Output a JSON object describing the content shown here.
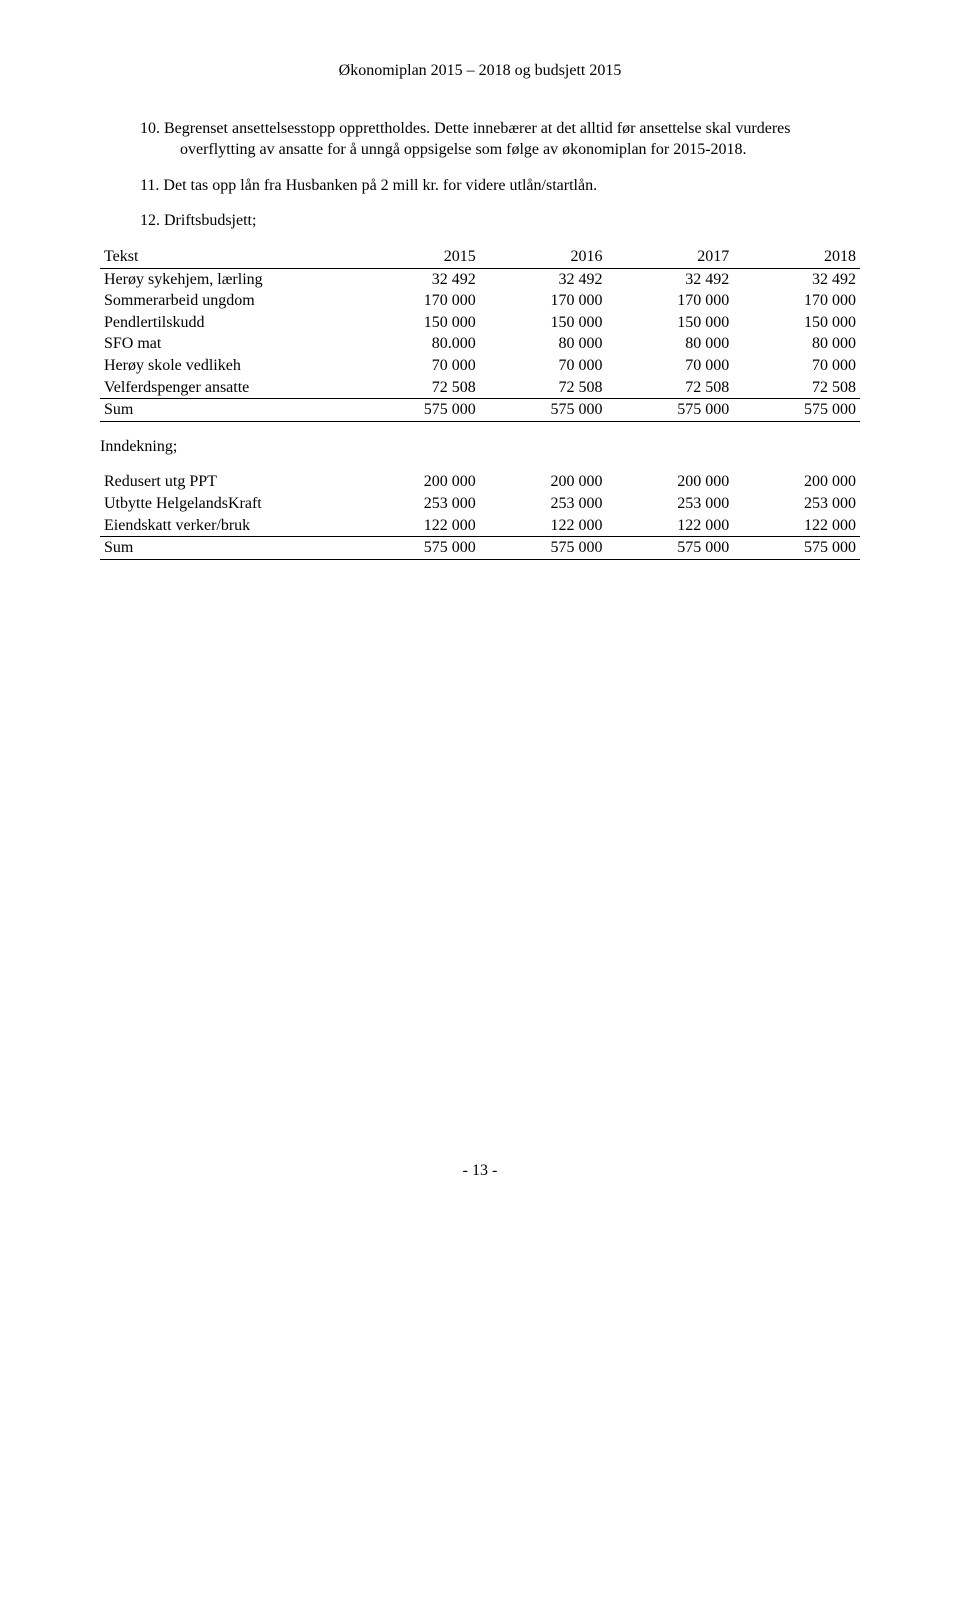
{
  "header": "Økonomiplan 2015 – 2018 og budsjett 2015",
  "items": {
    "p10": "10.   Begrenset ansettelsesstopp opprettholdes. Dette innebærer at det alltid før ansettelse skal vurderes overflytting av ansatte for å unngå oppsigelse som følge av økonomiplan for 2015-2018.",
    "p11": "11.   Det tas opp lån fra Husbanken på 2 mill kr. for videre utlån/startlån.",
    "p12": "12.   Driftsbudsjett;"
  },
  "table1": {
    "header": {
      "c0": "Tekst",
      "c1": "2015",
      "c2": "2016",
      "c3": "2017",
      "c4": "2018"
    },
    "rows": [
      {
        "c0": "Herøy sykehjem, lærling",
        "c1": "32 492",
        "c2": "32 492",
        "c3": "32 492",
        "c4": "32 492"
      },
      {
        "c0": "Sommerarbeid ungdom",
        "c1": "170 000",
        "c2": "170 000",
        "c3": "170 000",
        "c4": "170 000"
      },
      {
        "c0": "Pendlertilskudd",
        "c1": "150 000",
        "c2": "150 000",
        "c3": "150 000",
        "c4": "150 000"
      },
      {
        "c0": "SFO mat",
        "c1": "80.000",
        "c2": "80 000",
        "c3": "80 000",
        "c4": "80 000"
      },
      {
        "c0": "Herøy skole vedlikeh",
        "c1": "70 000",
        "c2": "70 000",
        "c3": "70 000",
        "c4": "70 000"
      },
      {
        "c0": "Velferdspenger ansatte",
        "c1": "72 508",
        "c2": "72 508",
        "c3": "72 508",
        "c4": "72 508"
      }
    ],
    "sum": {
      "c0": "Sum",
      "c1": "575 000",
      "c2": "575 000",
      "c3": "575 000",
      "c4": "575 000"
    }
  },
  "table2": {
    "title": "Inndekning;",
    "rows": [
      {
        "c0": "Redusert utg PPT",
        "c1": "200 000",
        "c2": "200 000",
        "c3": "200 000",
        "c4": "200 000"
      },
      {
        "c0": "Utbytte HelgelandsKraft",
        "c1": "253 000",
        "c2": "253 000",
        "c3": "253 000",
        "c4": "253 000"
      },
      {
        "c0": "Eiendskatt verker/bruk",
        "c1": "122 000",
        "c2": "122 000",
        "c3": "122 000",
        "c4": "122 000"
      }
    ],
    "sum": {
      "c0": "Sum",
      "c1": "575 000",
      "c2": "575 000",
      "c3": "575 000",
      "c4": "575 000"
    }
  },
  "footer": "- 13 -"
}
